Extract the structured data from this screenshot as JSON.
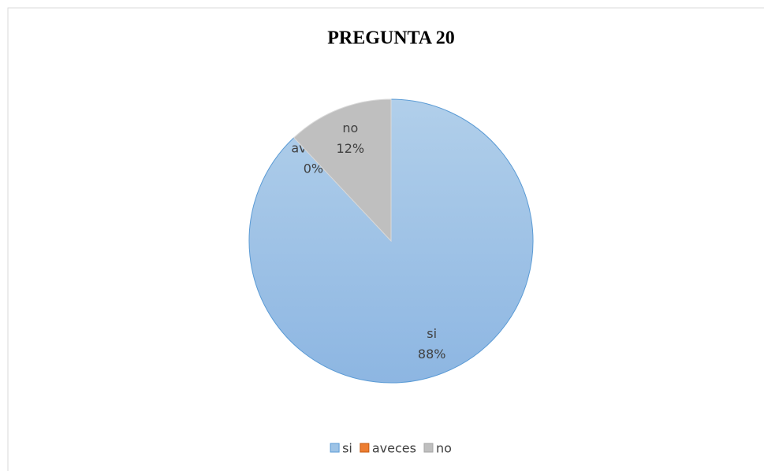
{
  "chart_data": {
    "type": "pie",
    "title": "PREGUNTA 20",
    "categories": [
      "si",
      "aveces",
      "no"
    ],
    "values": [
      88,
      0,
      12
    ],
    "value_labels": [
      "88%",
      "0%",
      "12%"
    ],
    "colors": [
      "#9dc3e6",
      "#ed7d31",
      "#bfbfbf"
    ],
    "legend": "bottom"
  }
}
